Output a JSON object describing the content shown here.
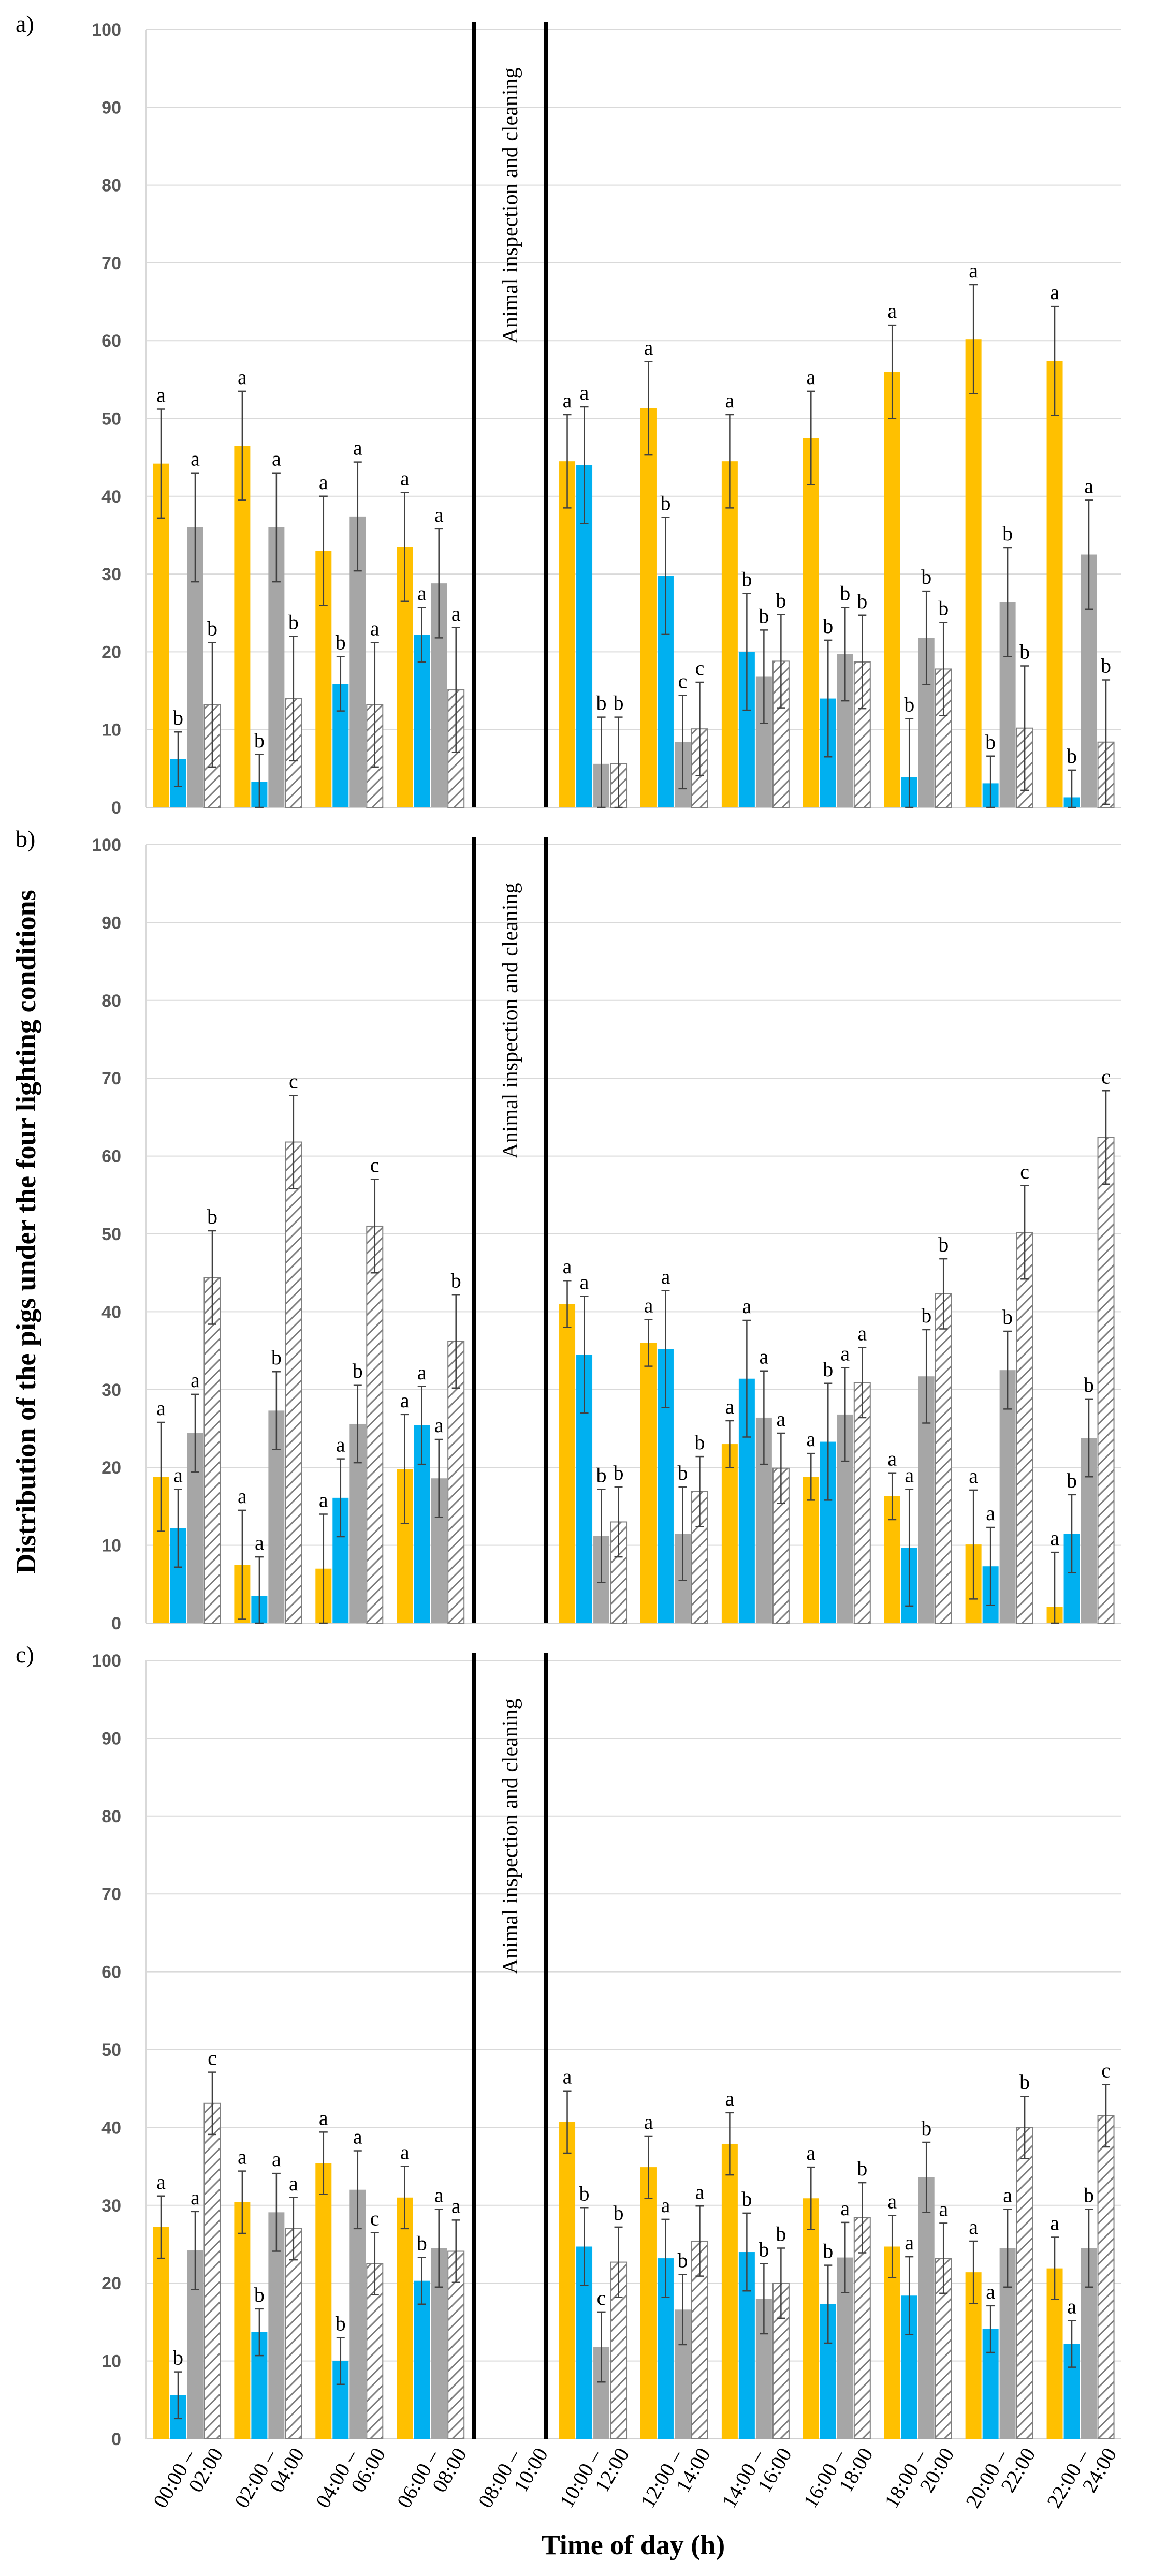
{
  "chart_data": {
    "type": "bar",
    "ylabel": "Distribution of the pigs under the four lighting conditions",
    "xlabel": "Time of day (h)",
    "ylim": [
      0,
      100
    ],
    "yticks": [
      0,
      10,
      20,
      30,
      40,
      50,
      60,
      70,
      80,
      90,
      100
    ],
    "categories": [
      [
        "00:00 –",
        "02:00"
      ],
      [
        "02:00 –",
        "04:00"
      ],
      [
        "04:00 –",
        "06:00"
      ],
      [
        "06:00 –",
        "08:00"
      ],
      [
        "08:00 –",
        "10:00"
      ],
      [
        "10:00 –",
        "12:00"
      ],
      [
        "12:00 –",
        "14:00"
      ],
      [
        "14:00 –",
        "16:00"
      ],
      [
        "16:00 –",
        "18:00"
      ],
      [
        "18:00 –",
        "20:00"
      ],
      [
        "20:00 –",
        "22:00"
      ],
      [
        "22:00 –",
        "24:00"
      ]
    ],
    "gap_category_index": 4,
    "gap_annotation": "Animal inspection and cleaning",
    "series_styles": [
      {
        "color": "#FFC000",
        "pattern": "solid"
      },
      {
        "color": "#00B0F0",
        "pattern": "solid"
      },
      {
        "color": "#A6A6A6",
        "pattern": "solid"
      },
      {
        "color": "#FFFFFF",
        "pattern": "hatched"
      }
    ],
    "panels": [
      {
        "label": "a)",
        "series": [
          {
            "values": [
              44.2,
              46.5,
              33.0,
              33.5,
              null,
              44.5,
              51.3,
              44.5,
              47.5,
              56.0,
              60.2,
              57.4
            ],
            "errors": [
              7,
              7,
              7,
              7,
              null,
              6,
              6,
              6,
              6,
              6,
              7,
              7
            ],
            "letters": [
              "a",
              "a",
              "a",
              "a",
              "",
              "a",
              "a",
              "a",
              "a",
              "a",
              "a",
              "a"
            ]
          },
          {
            "values": [
              6.2,
              3.3,
              15.9,
              22.2,
              null,
              44.0,
              29.8,
              20.0,
              14.0,
              3.9,
              3.1,
              1.3
            ],
            "errors": [
              3.5,
              3.5,
              3.5,
              3.5,
              null,
              7.5,
              7.5,
              7.5,
              7.5,
              7.5,
              3.5,
              3.5
            ],
            "letters": [
              "b",
              "b",
              "b",
              "a",
              "",
              "a",
              "b",
              "b",
              "b",
              "b",
              "b",
              "b"
            ]
          },
          {
            "values": [
              36.0,
              36.0,
              37.4,
              28.8,
              null,
              5.6,
              8.4,
              16.8,
              19.7,
              21.8,
              26.4,
              32.5
            ],
            "errors": [
              7,
              7,
              7,
              7,
              null,
              6,
              6,
              6,
              6,
              6,
              7,
              7
            ],
            "letters": [
              "a",
              "a",
              "a",
              "a",
              "",
              "b",
              "c",
              "b",
              "b",
              "b",
              "b",
              "a"
            ]
          },
          {
            "values": [
              13.2,
              14.0,
              13.2,
              15.1,
              null,
              5.6,
              10.1,
              18.8,
              18.7,
              17.8,
              10.2,
              8.4
            ],
            "errors": [
              8,
              8,
              8,
              8,
              null,
              6,
              6,
              6,
              6,
              6,
              8,
              8
            ],
            "letters": [
              "b",
              "b",
              "a",
              "a",
              "",
              "b",
              "c",
              "b",
              "b",
              "b",
              "b",
              "b"
            ]
          }
        ]
      },
      {
        "label": "b)",
        "series": [
          {
            "values": [
              18.8,
              7.5,
              7.0,
              19.8,
              null,
              41.0,
              36.0,
              23.0,
              18.8,
              16.3,
              10.1,
              2.1
            ],
            "errors": [
              7,
              7,
              7,
              7,
              null,
              3,
              3,
              3,
              3,
              3,
              7,
              7
            ],
            "letters": [
              "a",
              "a",
              "a",
              "a",
              "",
              "a",
              "a",
              "a",
              "a",
              "a",
              "a",
              "a"
            ]
          },
          {
            "values": [
              12.2,
              3.5,
              16.1,
              25.4,
              null,
              34.5,
              35.2,
              31.4,
              23.3,
              9.7,
              7.3,
              11.5
            ],
            "errors": [
              5,
              5,
              5,
              5,
              null,
              7.5,
              7.5,
              7.5,
              7.5,
              7.5,
              5,
              5
            ],
            "letters": [
              "a",
              "a",
              "a",
              "a",
              "",
              "a",
              "a",
              "a",
              "b",
              "a",
              "a",
              "b"
            ]
          },
          {
            "values": [
              24.4,
              27.3,
              25.6,
              18.6,
              null,
              11.2,
              11.5,
              26.4,
              26.8,
              31.7,
              32.5,
              23.8
            ],
            "errors": [
              5,
              5,
              5,
              5,
              null,
              6,
              6,
              6,
              6,
              6,
              5,
              5
            ],
            "letters": [
              "a",
              "b",
              "b",
              "a",
              "",
              "b",
              "b",
              "a",
              "a",
              "b",
              "b",
              "b"
            ]
          },
          {
            "values": [
              44.4,
              61.8,
              51.0,
              36.2,
              null,
              13.0,
              16.9,
              19.9,
              30.9,
              42.3,
              50.2,
              62.4
            ],
            "errors": [
              6,
              6,
              6,
              6,
              null,
              4.5,
              4.5,
              4.5,
              4.5,
              4.5,
              6,
              6
            ],
            "letters": [
              "b",
              "c",
              "c",
              "b",
              "",
              "b",
              "b",
              "a",
              "a",
              "b",
              "c",
              "c"
            ]
          }
        ]
      },
      {
        "label": "c)",
        "series": [
          {
            "values": [
              27.2,
              30.4,
              35.4,
              31.0,
              null,
              40.7,
              34.9,
              37.9,
              30.9,
              24.7,
              21.4,
              21.9
            ],
            "errors": [
              4,
              4,
              4,
              4,
              null,
              4,
              4,
              4,
              4,
              4,
              4,
              4
            ],
            "letters": [
              "a",
              "a",
              "a",
              "a",
              "",
              "a",
              "a",
              "a",
              "a",
              "a",
              "a",
              "a"
            ]
          },
          {
            "values": [
              5.6,
              13.7,
              10.0,
              20.3,
              null,
              24.7,
              23.2,
              24.0,
              17.3,
              18.4,
              14.1,
              12.2
            ],
            "errors": [
              3,
              3,
              3,
              3,
              null,
              5,
              5,
              5,
              5,
              5,
              3,
              3
            ],
            "letters": [
              "b",
              "b",
              "b",
              "b",
              "",
              "b",
              "a",
              "b",
              "b",
              "a",
              "a",
              "a"
            ]
          },
          {
            "values": [
              24.2,
              29.1,
              32.0,
              24.5,
              null,
              11.8,
              16.6,
              18.0,
              23.3,
              33.6,
              24.5,
              24.5
            ],
            "errors": [
              5,
              5,
              5,
              5,
              null,
              4.5,
              4.5,
              4.5,
              4.5,
              4.5,
              5,
              5
            ],
            "letters": [
              "a",
              "a",
              "a",
              "a",
              "",
              "c",
              "b",
              "b",
              "a",
              "b",
              "a",
              "b"
            ]
          },
          {
            "values": [
              43.1,
              27.0,
              22.5,
              24.1,
              null,
              22.7,
              25.4,
              20.0,
              28.4,
              23.2,
              40.0,
              41.5
            ],
            "errors": [
              4,
              4,
              4,
              4,
              null,
              4.5,
              4.5,
              4.5,
              4.5,
              4.5,
              4,
              4
            ],
            "letters": [
              "c",
              "a",
              "c",
              "a",
              "",
              "b",
              "a",
              "b",
              "b",
              "a",
              "b",
              "c"
            ]
          }
        ]
      }
    ]
  }
}
